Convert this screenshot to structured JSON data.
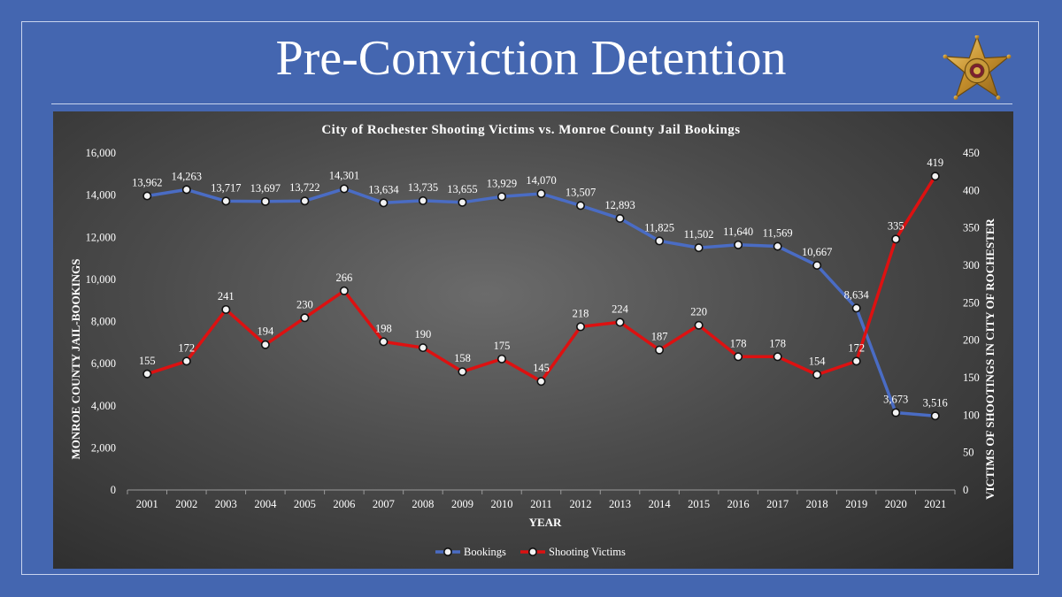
{
  "slide": {
    "title": "Pre-Conviction Detention"
  },
  "colors": {
    "background": "#4466b0",
    "bookings": "#4a6cc4",
    "shooting_victims": "#dd1111",
    "text": "#ffffff"
  },
  "icons": {
    "badge": "sheriff-star-badge"
  },
  "chart_data": {
    "type": "line",
    "title": "City of Rochester Shooting Victims vs. Monroe County Jail Bookings",
    "xlabel": "YEAR",
    "ylabel": "MONROE COUNTY JAIL-BOOKINGS",
    "y2label": "VICTIMS OF SHOOTINGS IN CITY OF ROCHESTER",
    "x": [
      "2001",
      "2002",
      "2003",
      "2004",
      "2005",
      "2006",
      "2007",
      "2008",
      "2009",
      "2010",
      "2011",
      "2012",
      "2013",
      "2014",
      "2015",
      "2016",
      "2017",
      "2018",
      "2019",
      "2020",
      "2021"
    ],
    "ylim": [
      0,
      16000
    ],
    "yticks": [
      "0",
      "2,000",
      "4,000",
      "6,000",
      "8,000",
      "10,000",
      "12,000",
      "14,000",
      "16,000"
    ],
    "y2lim": [
      0,
      450
    ],
    "y2ticks": [
      "0",
      "50",
      "100",
      "150",
      "200",
      "250",
      "300",
      "350",
      "400",
      "450"
    ],
    "grid": false,
    "legend_position": "bottom",
    "series": [
      {
        "name": "Bookings",
        "axis": "left",
        "values": [
          13962,
          14263,
          13717,
          13697,
          13722,
          14301,
          13634,
          13735,
          13655,
          13929,
          14070,
          13507,
          12893,
          11825,
          11502,
          11640,
          11569,
          10667,
          8634,
          3673,
          3516
        ],
        "labels": [
          "13,962",
          "14,263",
          "13,717",
          "13,697",
          "13,722",
          "14,301",
          "13,634",
          "13,735",
          "13,655",
          "13,929",
          "14,070",
          "13,507",
          "12,893",
          "11,825",
          "11,502",
          "11,640",
          "11,569",
          "10,667",
          "8,634",
          "3,673",
          "3,516"
        ]
      },
      {
        "name": "Shooting Victims",
        "axis": "right",
        "values": [
          155,
          172,
          241,
          194,
          230,
          266,
          198,
          190,
          158,
          175,
          145,
          218,
          224,
          187,
          220,
          178,
          178,
          154,
          172,
          335,
          419
        ],
        "labels": [
          "155",
          "172",
          "241",
          "194",
          "230",
          "266",
          "198",
          "190",
          "158",
          "175",
          "145",
          "218",
          "224",
          "187",
          "220",
          "178",
          "178",
          "154",
          "172",
          "335",
          "419"
        ]
      }
    ]
  }
}
